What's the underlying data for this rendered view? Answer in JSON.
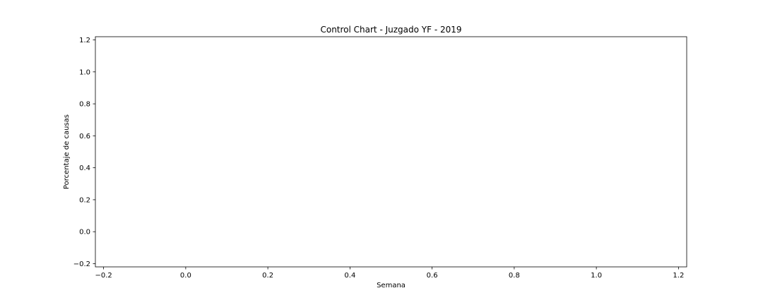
{
  "chart_data": {
    "type": "line",
    "title": "Control Chart - Juzgado YF - 2019",
    "xlabel": "Semana",
    "ylabel": "Porcentaje de causas",
    "xlim": [
      -0.22,
      1.22
    ],
    "ylim": [
      -0.22,
      1.22
    ],
    "x_ticks": [
      "−0.2",
      "0.0",
      "0.2",
      "0.4",
      "0.6",
      "0.8",
      "1.0",
      "1.2"
    ],
    "x_tick_values": [
      -0.2,
      0.0,
      0.2,
      0.4,
      0.6,
      0.8,
      1.0,
      1.2
    ],
    "y_ticks": [
      "−0.2",
      "0.0",
      "0.2",
      "0.4",
      "0.6",
      "0.8",
      "1.0",
      "1.2"
    ],
    "y_tick_values": [
      -0.2,
      0.0,
      0.2,
      0.4,
      0.6,
      0.8,
      1.0,
      1.2
    ],
    "series": [],
    "grid": false,
    "legend": "none"
  }
}
